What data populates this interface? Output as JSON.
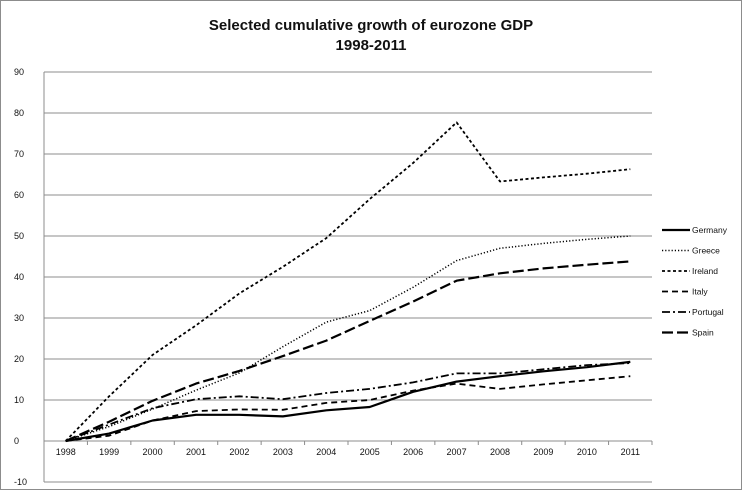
{
  "chart_data": {
    "type": "line",
    "title": "Selected cumulative growth of eurozone GDP",
    "subtitle": "1998-2011",
    "xlabel": "",
    "ylabel": "",
    "ylim": [
      -10,
      90
    ],
    "yticks": [
      -10,
      0,
      10,
      20,
      30,
      40,
      50,
      60,
      70,
      80,
      90
    ],
    "x": [
      "1998",
      "1999",
      "2000",
      "2001",
      "2002",
      "2003",
      "2004",
      "2005",
      "2006",
      "2007",
      "2008",
      "2009",
      "2010",
      "2011"
    ],
    "grid": "horizontal",
    "legend_position": "right",
    "series": [
      {
        "name": "Germany",
        "style": "solid",
        "width": 2.2,
        "values": [
          0,
          1.8,
          5.0,
          6.4,
          6.4,
          6.0,
          7.5,
          8.3,
          12.0,
          14.5,
          15.8,
          17.0,
          18.0,
          19.3
        ]
      },
      {
        "name": "Greece",
        "style": "dotted",
        "width": 1.5,
        "values": [
          0,
          3.5,
          7.8,
          12.4,
          16.6,
          23.0,
          29.0,
          31.8,
          37.5,
          44.0,
          47.0,
          48.2,
          49.2,
          50.0
        ]
      },
      {
        "name": "Ireland",
        "style": "short-dash",
        "width": 1.8,
        "values": [
          0,
          10.9,
          21.0,
          28.2,
          36.0,
          42.5,
          49.5,
          59.0,
          67.8,
          77.7,
          63.3,
          64.3,
          65.2,
          66.3
        ]
      },
      {
        "name": "Italy",
        "style": "dash",
        "width": 1.8,
        "values": [
          0,
          1.3,
          5.0,
          7.3,
          7.7,
          7.6,
          9.3,
          10.0,
          12.3,
          14.0,
          12.7,
          13.8,
          14.8,
          15.8
        ]
      },
      {
        "name": "Portugal",
        "style": "dash-dot",
        "width": 1.8,
        "values": [
          0,
          4.0,
          8.0,
          10.2,
          10.9,
          10.2,
          11.7,
          12.7,
          14.3,
          16.5,
          16.5,
          17.5,
          18.5,
          19.0
        ]
      },
      {
        "name": "Spain",
        "style": "long-dash",
        "width": 2.2,
        "values": [
          0,
          4.7,
          9.8,
          14.0,
          17.1,
          20.7,
          24.5,
          29.3,
          34.0,
          39.1,
          40.9,
          42.1,
          43.0,
          43.8
        ]
      }
    ]
  }
}
